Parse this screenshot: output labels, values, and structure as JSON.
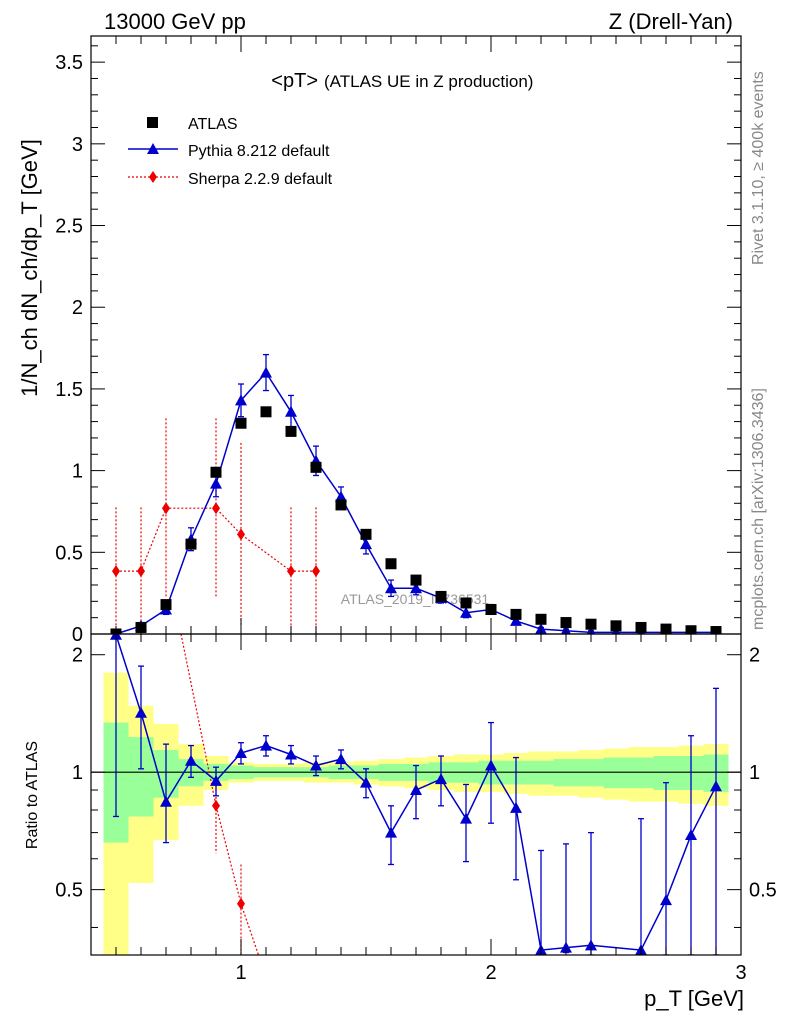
{
  "header": {
    "energy": "13000 GeV pp",
    "process": "Z (Drell-Yan)"
  },
  "side_text": {
    "rivet": "Rivet 3.1.10, ≥ 400k events",
    "mcplots": "mcplots.cern.ch [arXiv:1306.3436]"
  },
  "watermark": "ATLAS_2019_I1736531",
  "colors": {
    "data": "#000000",
    "pythia": "#0000cc",
    "sherpa": "#ee0000",
    "band_inner": "#99ff99",
    "band_outer": "#ffff88"
  },
  "chart_data": [
    {
      "type": "scatter",
      "title": "<pT>",
      "subtitle": "(ATLAS UE in Z production)",
      "xlabel": "p_T [GeV]",
      "ylabel": "1/N_ch dN_ch/dp_T [GeV]",
      "xlim": [
        0.4,
        3.0
      ],
      "ylim": [
        0,
        3.66
      ],
      "yticks": [
        0,
        0.5,
        1,
        1.5,
        2,
        2.5,
        3,
        3.5
      ],
      "ytick_labels": [
        "0",
        "0.5",
        "1",
        "1.5",
        "2",
        "2.5",
        "3",
        "3.5"
      ],
      "legend_position": "top-left",
      "series": [
        {
          "name": "ATLAS",
          "marker": "square",
          "x": [
            0.5,
            0.6,
            0.7,
            0.8,
            0.9,
            1.0,
            1.1,
            1.2,
            1.3,
            1.4,
            1.5,
            1.6,
            1.7,
            1.8,
            1.9,
            2.0,
            2.1,
            2.2,
            2.3,
            2.4,
            2.5,
            2.6,
            2.7,
            2.8,
            2.9
          ],
          "y": [
            0.0,
            0.04,
            0.18,
            0.55,
            0.99,
            1.29,
            1.36,
            1.24,
            1.02,
            0.79,
            0.61,
            0.43,
            0.33,
            0.23,
            0.19,
            0.15,
            0.12,
            0.09,
            0.07,
            0.06,
            0.05,
            0.04,
            0.03,
            0.02,
            0.015
          ],
          "err": [
            0,
            0,
            0,
            0,
            0,
            0,
            0,
            0,
            0,
            0,
            0,
            0,
            0,
            0,
            0,
            0,
            0,
            0,
            0,
            0,
            0,
            0,
            0,
            0,
            0
          ]
        },
        {
          "name": "Pythia 8.212 default",
          "marker": "triangle",
          "x": [
            0.5,
            0.6,
            0.7,
            0.8,
            0.9,
            1.0,
            1.1,
            1.2,
            1.3,
            1.4,
            1.5,
            1.6,
            1.7,
            1.8,
            1.9,
            2.0,
            2.1,
            2.2,
            2.3,
            2.4,
            2.5,
            2.6,
            2.7,
            2.8,
            2.9
          ],
          "y": [
            0.0,
            0.05,
            0.15,
            0.58,
            0.92,
            1.43,
            1.6,
            1.36,
            1.06,
            0.84,
            0.55,
            0.28,
            0.28,
            0.22,
            0.13,
            0.15,
            0.08,
            0.03,
            0.02,
            0.01,
            0.01,
            0.01,
            0.01,
            0.01,
            0.01
          ],
          "err": [
            0,
            0.02,
            0.03,
            0.07,
            0.08,
            0.1,
            0.11,
            0.1,
            0.09,
            0.06,
            0.06,
            0.05,
            0.04,
            0.03,
            0.03,
            0.03,
            0.02,
            0.01,
            0.01,
            0.01,
            0.01,
            0.01,
            0.01,
            0.01,
            0.01
          ]
        },
        {
          "name": "Sherpa 2.2.9 default",
          "marker": "diamond",
          "x": [
            0.5,
            0.6,
            0.7,
            0.9,
            1.0,
            1.2,
            1.3
          ],
          "y": [
            0.385,
            0.385,
            0.77,
            0.77,
            0.61,
            0.385,
            0.385
          ],
          "err": [
            0.39,
            0.39,
            0.55,
            0.55,
            0.56,
            0.39,
            0.39
          ]
        }
      ]
    },
    {
      "type": "scatter",
      "title": "",
      "xlabel": "p_T [GeV]",
      "ylabel": "Ratio to ATLAS",
      "xlim": [
        0.4,
        3.0
      ],
      "ylim": [
        0.34,
        2.26
      ],
      "yticks": [
        0.5,
        1,
        2
      ],
      "ytick_labels": [
        "0.5",
        "1",
        "2"
      ],
      "xticks": [
        1,
        2,
        3
      ],
      "xtick_labels": [
        "1",
        "2",
        "3"
      ],
      "reference_line": 1,
      "series": [
        {
          "name": "Pythia 8.212 default",
          "x": [
            0.5,
            0.6,
            0.7,
            0.8,
            0.9,
            1.0,
            1.1,
            1.2,
            1.3,
            1.4,
            1.5,
            1.6,
            1.7,
            1.8,
            1.9,
            2.0,
            2.1,
            2.2,
            2.3,
            2.4,
            2.6,
            2.7,
            2.8,
            2.9
          ],
          "y": [
            2.25,
            1.42,
            0.84,
            1.07,
            0.95,
            1.12,
            1.17,
            1.11,
            1.04,
            1.08,
            0.94,
            0.7,
            0.9,
            0.96,
            0.76,
            1.04,
            0.81,
            0.35,
            0.355,
            0.36,
            0.35,
            0.47,
            0.69,
            0.92
          ],
          "err_up": [
            0,
            0.45,
            0.34,
            0.1,
            0.08,
            0.07,
            0.07,
            0.06,
            0.06,
            0.06,
            0.08,
            0.12,
            0.14,
            0.14,
            0.17,
            0.3,
            0.28,
            0.28,
            0.3,
            0.34,
            0.41,
            0.47,
            0.55,
            0.72
          ],
          "err_down": [
            1.48,
            0.4,
            0.18,
            0.1,
            0.08,
            0.07,
            0.07,
            0.06,
            0.06,
            0.06,
            0.08,
            0.12,
            0.14,
            0.14,
            0.17,
            0.3,
            0.28,
            0.01,
            0.01,
            0.02,
            0.01,
            0.13,
            0.35,
            0.58
          ]
        },
        {
          "name": "Sherpa 2.2.9 default",
          "x": [
            0.9,
            1.0
          ],
          "y": [
            0.82,
            0.46
          ],
          "err": [
            0.2,
            0.12
          ],
          "line_from_above": [
            [
              0.76,
              2.26
            ],
            [
              0.9,
              0.82
            ],
            [
              1.0,
              0.46
            ],
            [
              1.07,
              0.34
            ]
          ]
        }
      ],
      "bands": {
        "edges": [
          0.45,
          0.55,
          0.65,
          0.75,
          0.85,
          0.95,
          1.05,
          1.15,
          1.25,
          1.35,
          1.45,
          1.55,
          1.65,
          1.75,
          1.85,
          1.95,
          2.05,
          2.15,
          2.25,
          2.35,
          2.45,
          2.55,
          2.65,
          2.75,
          2.85,
          2.95
        ],
        "inner_lo": [
          0.66,
          0.77,
          0.86,
          0.92,
          0.95,
          0.96,
          0.97,
          0.97,
          0.97,
          0.96,
          0.96,
          0.95,
          0.95,
          0.94,
          0.94,
          0.93,
          0.93,
          0.93,
          0.92,
          0.92,
          0.91,
          0.91,
          0.9,
          0.9,
          0.89
        ],
        "inner_hi": [
          1.34,
          1.23,
          1.14,
          1.08,
          1.05,
          1.04,
          1.03,
          1.03,
          1.03,
          1.04,
          1.04,
          1.05,
          1.05,
          1.06,
          1.06,
          1.07,
          1.07,
          1.07,
          1.08,
          1.08,
          1.09,
          1.09,
          1.1,
          1.1,
          1.11
        ],
        "outer_lo": [
          0.34,
          0.52,
          0.67,
          0.82,
          0.9,
          0.94,
          0.95,
          0.95,
          0.94,
          0.94,
          0.93,
          0.92,
          0.91,
          0.9,
          0.89,
          0.89,
          0.88,
          0.87,
          0.87,
          0.86,
          0.85,
          0.84,
          0.84,
          0.83,
          0.82
        ],
        "outer_hi": [
          1.8,
          1.48,
          1.33,
          1.18,
          1.1,
          1.06,
          1.05,
          1.05,
          1.06,
          1.06,
          1.07,
          1.08,
          1.09,
          1.1,
          1.11,
          1.11,
          1.12,
          1.13,
          1.13,
          1.14,
          1.15,
          1.16,
          1.16,
          1.17,
          1.18
        ]
      }
    }
  ]
}
